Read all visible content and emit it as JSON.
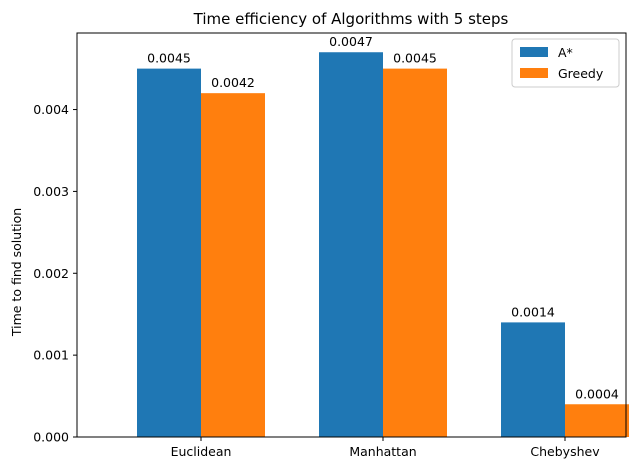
{
  "chart_data": {
    "type": "bar",
    "title": "Time efficiency of Algorithms with 5 steps",
    "xlabel": "",
    "ylabel": "Time to find solution",
    "categories": [
      "Euclidean",
      "Manhattan",
      "Chebyshev"
    ],
    "series": [
      {
        "name": "A*",
        "color": "#1f77b4",
        "values": [
          0.0045,
          0.0047,
          0.0014
        ],
        "labels": [
          "0.0045",
          "0.0047",
          "0.0014"
        ]
      },
      {
        "name": "Greedy",
        "color": "#ff7f0e",
        "values": [
          0.0042,
          0.0045,
          0.0004
        ],
        "labels": [
          "0.0042",
          "0.0045",
          "0.0004"
        ]
      }
    ],
    "ylim": [
      0,
      0.004935
    ],
    "yticks": [
      0,
      0.001,
      0.002,
      0.003,
      0.004
    ],
    "ytick_labels": [
      "0.000",
      "0.001",
      "0.002",
      "0.003",
      "0.004"
    ],
    "grid": false,
    "legend_position": "top-right"
  }
}
